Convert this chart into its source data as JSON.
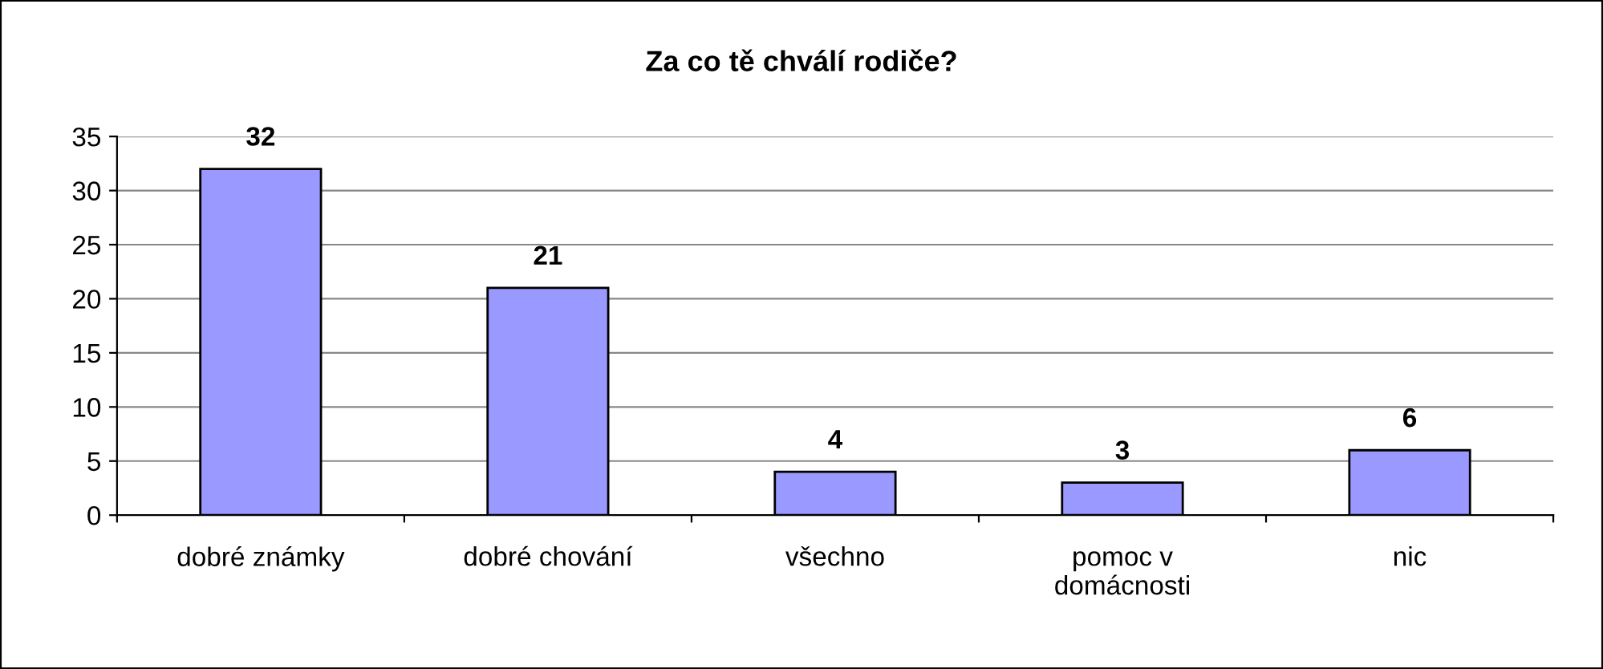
{
  "chart_data": {
    "type": "bar",
    "title": "Za co tě chválí rodiče?",
    "categories": [
      "dobré známky",
      "dobré chování",
      "všechno",
      "pomoc v domácnosti",
      "nic"
    ],
    "values": [
      32,
      21,
      4,
      3,
      6
    ],
    "color": "#9999ff",
    "ylim": [
      0,
      35
    ],
    "yticks": [
      0,
      5,
      10,
      15,
      20,
      25,
      30,
      35
    ],
    "grid": "y",
    "data_labels": true
  }
}
